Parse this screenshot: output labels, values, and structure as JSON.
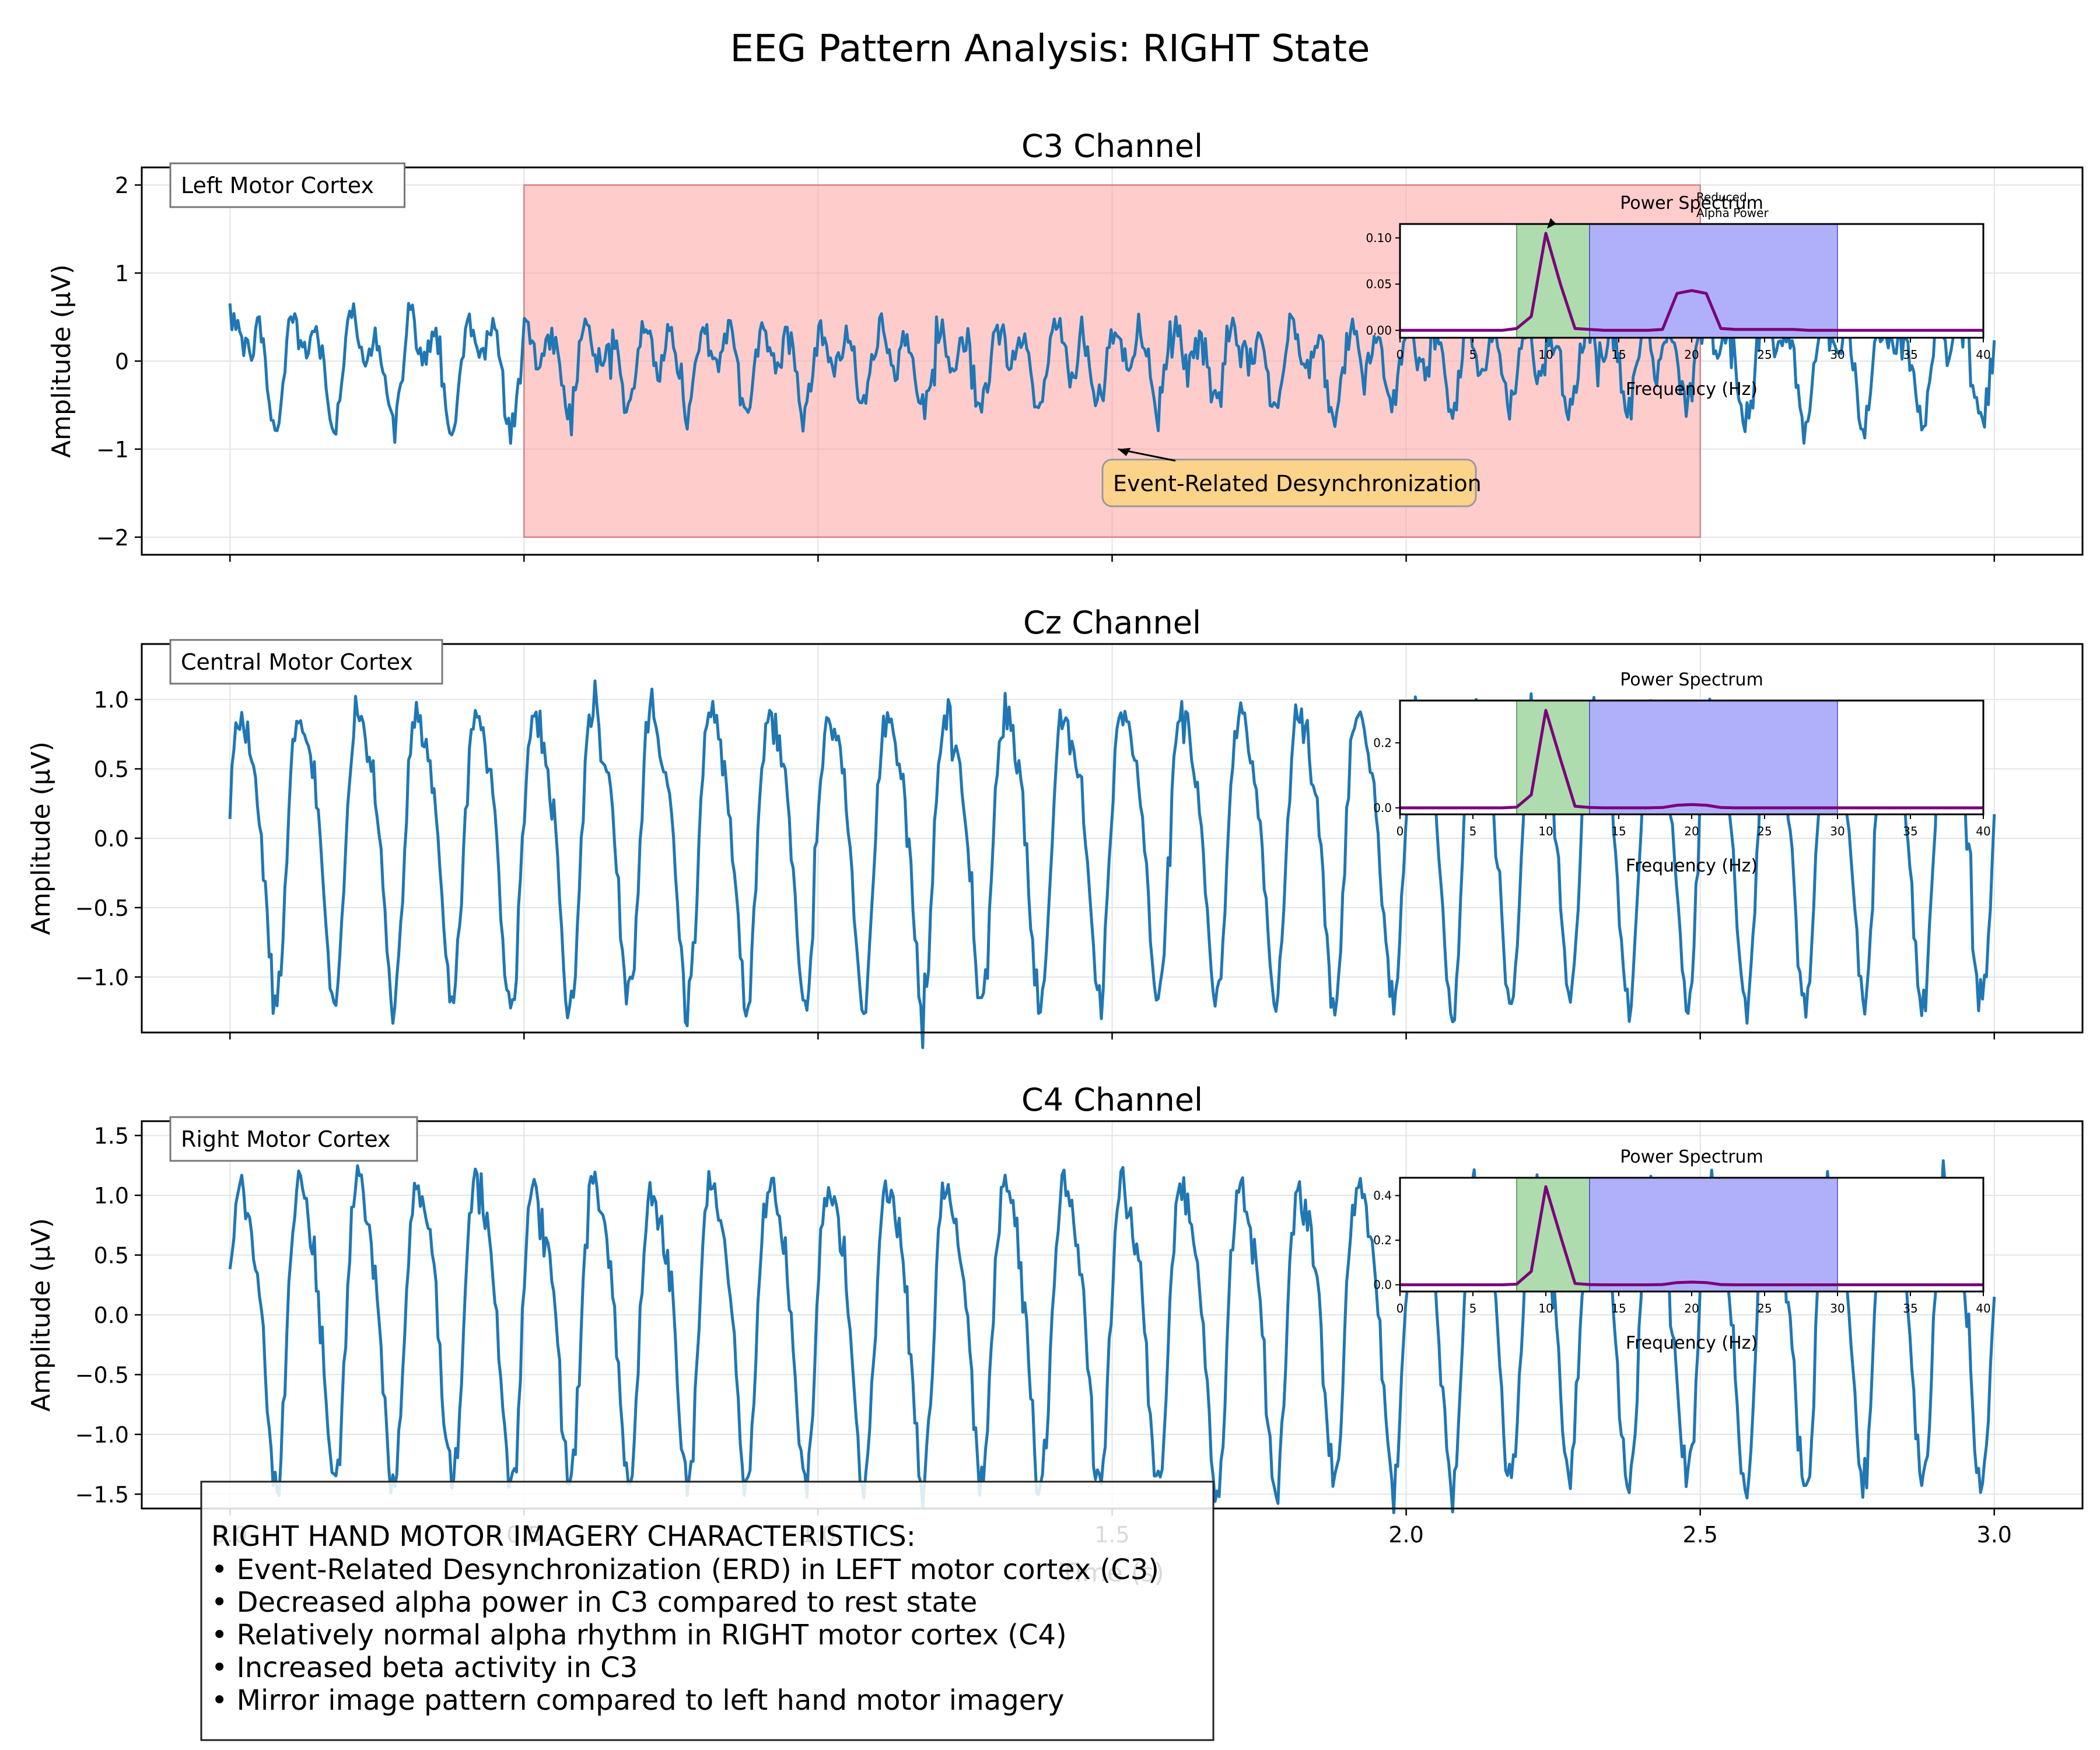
{
  "figure": {
    "title": "EEG Pattern Analysis: RIGHT State",
    "xlabel": "Time (s)"
  },
  "info_box": {
    "heading": "RIGHT HAND MOTOR IMAGERY CHARACTERISTICS:",
    "lines": [
      "• Event-Related Desynchronization (ERD) in LEFT motor cortex (C3)",
      "• Decreased alpha power in C3 compared to rest state",
      "• Relatively normal alpha rhythm in RIGHT motor cortex (C4)",
      "• Increased beta activity in C3",
      "• Mirror image pattern compared to left hand motor imagery"
    ]
  },
  "chart_data": [
    {
      "type": "line",
      "title": "C3 Channel",
      "ylabel": "Amplitude (µV)",
      "xlim": [
        -0.15,
        3.15
      ],
      "ylim": [
        -2.2,
        2.2
      ],
      "xticks": [
        0.0,
        0.5,
        1.0,
        1.5,
        2.0,
        2.5,
        3.0
      ],
      "xtick_labels": [
        "0.0",
        "0.5",
        "1.0",
        "1.5",
        "2.0",
        "2.5",
        "3.0"
      ],
      "yticks": [
        -2,
        -1,
        0,
        1,
        2
      ],
      "ytick_labels": [
        "−2",
        "−1",
        "0",
        "1",
        "2"
      ],
      "region_label": "Left Motor Cortex",
      "signal": {
        "duration": 3.0,
        "alpha_hz": 10,
        "alpha_amp": 0.45,
        "beta_hz": 20,
        "beta_amp": 0.28,
        "noise": 0.12,
        "erd_start": 0.5,
        "erd_end": 2.5,
        "color": "#1f77b4"
      },
      "highlight": {
        "x0": 0.5,
        "x1": 2.5,
        "y0": -2,
        "y1": 2,
        "color": "#ff9a9a"
      },
      "annotation": {
        "text": "Event-Related Desynchronization",
        "point": [
          1.5,
          -1.0
        ],
        "text_at": [
          1.5,
          -1.45
        ]
      },
      "inset": {
        "title": "Power Spectrum",
        "xlabel": "Frequency (Hz)",
        "xlim": [
          0,
          40
        ],
        "ylim": [
          -0.008,
          0.115
        ],
        "xticks": [
          0,
          5,
          10,
          15,
          20,
          25,
          30,
          35,
          40
        ],
        "xtick_labels": [
          "0",
          "5",
          "10",
          "15",
          "20",
          "25",
          "30",
          "35",
          "40"
        ],
        "yticks": [
          0.0,
          0.05,
          0.1
        ],
        "ytick_labels": [
          "0.00",
          "0.05",
          "0.10"
        ],
        "alpha_band": [
          8,
          13
        ],
        "beta_band": [
          13,
          30
        ],
        "freqs": [
          0,
          1,
          2,
          3,
          4,
          5,
          6,
          7,
          8,
          9,
          10,
          11,
          12,
          13,
          14,
          15,
          16,
          17,
          18,
          19,
          20,
          21,
          22,
          23,
          24,
          25,
          26,
          27,
          28,
          29,
          30,
          31,
          32,
          33,
          34,
          35,
          36,
          37,
          38,
          39,
          40
        ],
        "power": [
          0,
          0,
          0,
          0,
          0,
          0,
          0,
          0,
          0.002,
          0.015,
          0.105,
          0.05,
          0.002,
          0.001,
          0,
          0,
          0,
          0,
          0.001,
          0.04,
          0.043,
          0.04,
          0.002,
          0.001,
          0.001,
          0.001,
          0.001,
          0.001,
          0,
          0,
          0,
          0,
          0,
          0,
          0,
          0,
          0,
          0,
          0,
          0,
          0
        ],
        "annotation": {
          "text_lines": [
            "Reduced",
            "Alpha Power"
          ],
          "point": [
            10,
            0.11
          ]
        }
      }
    },
    {
      "type": "line",
      "title": "Cz Channel",
      "ylabel": "Amplitude (µV)",
      "xlim": [
        -0.15,
        3.15
      ],
      "ylim": [
        -1.4,
        1.4
      ],
      "xticks": [
        0.0,
        0.5,
        1.0,
        1.5,
        2.0,
        2.5,
        3.0
      ],
      "xtick_labels": [
        "0.0",
        "0.5",
        "1.0",
        "1.5",
        "2.0",
        "2.5",
        "3.0"
      ],
      "yticks": [
        -1.0,
        -0.5,
        0.0,
        0.5,
        1.0
      ],
      "ytick_labels": [
        "−1.0",
        "−0.5",
        "0.0",
        "0.5",
        "1.0"
      ],
      "region_label": "Central Motor Cortex",
      "signal": {
        "duration": 3.0,
        "alpha_hz": 10,
        "alpha_amp": 1.0,
        "beta_hz": 20,
        "beta_amp": 0.06,
        "noise": 0.08,
        "erd_start": null,
        "erd_end": null,
        "color": "#1f77b4"
      },
      "inset": {
        "title": "Power Spectrum",
        "xlabel": "Frequency (Hz)",
        "xlim": [
          0,
          40
        ],
        "ylim": [
          -0.02,
          0.33
        ],
        "xticks": [
          0,
          5,
          10,
          15,
          20,
          25,
          30,
          35,
          40
        ],
        "xtick_labels": [
          "0",
          "5",
          "10",
          "15",
          "20",
          "25",
          "30",
          "35",
          "40"
        ],
        "yticks": [
          0.0,
          0.2
        ],
        "ytick_labels": [
          "0.0",
          "0.2"
        ],
        "alpha_band": [
          8,
          13
        ],
        "beta_band": [
          13,
          30
        ],
        "freqs": [
          0,
          1,
          2,
          3,
          4,
          5,
          6,
          7,
          8,
          9,
          10,
          11,
          12,
          13,
          14,
          15,
          16,
          17,
          18,
          19,
          20,
          21,
          22,
          23,
          24,
          25,
          26,
          27,
          28,
          29,
          30,
          31,
          32,
          33,
          34,
          35,
          36,
          37,
          38,
          39,
          40
        ],
        "power": [
          0,
          0,
          0,
          0,
          0,
          0,
          0,
          0,
          0.002,
          0.04,
          0.3,
          0.15,
          0.005,
          0.001,
          0,
          0,
          0,
          0,
          0.001,
          0.008,
          0.01,
          0.008,
          0.001,
          0,
          0,
          0,
          0,
          0,
          0,
          0,
          0,
          0,
          0,
          0,
          0,
          0,
          0,
          0,
          0,
          0,
          0
        ]
      }
    },
    {
      "type": "line",
      "title": "C4 Channel",
      "ylabel": "Amplitude (µV)",
      "xlim": [
        -0.15,
        3.15
      ],
      "ylim": [
        -1.62,
        1.62
      ],
      "xticks": [
        0.0,
        0.5,
        1.0,
        1.5,
        2.0,
        2.5,
        3.0
      ],
      "xtick_labels": [
        "0.0",
        "0.5",
        "1.0",
        "1.5",
        "2.0",
        "2.5",
        "3.0"
      ],
      "yticks": [
        -1.5,
        -1.0,
        -0.5,
        0.0,
        0.5,
        1.0,
        1.5
      ],
      "ytick_labels": [
        "−1.5",
        "−1.0",
        "−0.5",
        "0.0",
        "0.5",
        "1.0",
        "1.5"
      ],
      "region_label": "Right Motor Cortex",
      "signal": {
        "duration": 3.0,
        "alpha_hz": 10,
        "alpha_amp": 1.2,
        "beta_hz": 20,
        "beta_amp": 0.06,
        "noise": 0.1,
        "erd_start": null,
        "erd_end": null,
        "color": "#1f77b4"
      },
      "inset": {
        "title": "Power Spectrum",
        "xlabel": "Frequency (Hz)",
        "xlim": [
          0,
          40
        ],
        "ylim": [
          -0.03,
          0.48
        ],
        "xticks": [
          0,
          5,
          10,
          15,
          20,
          25,
          30,
          35,
          40
        ],
        "xtick_labels": [
          "0",
          "5",
          "10",
          "15",
          "20",
          "25",
          "30",
          "35",
          "40"
        ],
        "yticks": [
          0.0,
          0.2,
          0.4
        ],
        "ytick_labels": [
          "0.0",
          "0.2",
          "0.4"
        ],
        "alpha_band": [
          8,
          13
        ],
        "beta_band": [
          13,
          30
        ],
        "freqs": [
          0,
          1,
          2,
          3,
          4,
          5,
          6,
          7,
          8,
          9,
          10,
          11,
          12,
          13,
          14,
          15,
          16,
          17,
          18,
          19,
          20,
          21,
          22,
          23,
          24,
          25,
          26,
          27,
          28,
          29,
          30,
          31,
          32,
          33,
          34,
          35,
          36,
          37,
          38,
          39,
          40
        ],
        "power": [
          0,
          0,
          0,
          0,
          0,
          0,
          0,
          0,
          0.003,
          0.06,
          0.44,
          0.22,
          0.006,
          0.001,
          0,
          0,
          0,
          0,
          0.001,
          0.01,
          0.012,
          0.01,
          0.001,
          0,
          0,
          0,
          0,
          0,
          0,
          0,
          0,
          0,
          0,
          0,
          0,
          0,
          0,
          0,
          0,
          0,
          0
        ]
      }
    }
  ]
}
